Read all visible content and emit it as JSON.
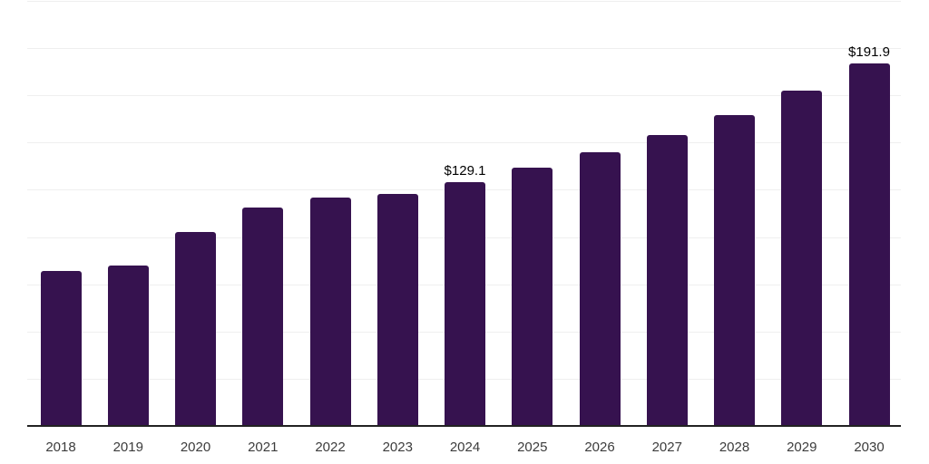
{
  "chart_data": {
    "type": "bar",
    "title": "",
    "xlabel": "",
    "ylabel": "",
    "categories": [
      "2018",
      "2019",
      "2020",
      "2021",
      "2022",
      "2023",
      "2024",
      "2025",
      "2026",
      "2027",
      "2028",
      "2029",
      "2030"
    ],
    "values": [
      82.1,
      85.0,
      102.6,
      115.4,
      121.1,
      123.0,
      129.1,
      136.5,
      145.1,
      154.0,
      164.5,
      177.6,
      191.9
    ],
    "data_labels": [
      {
        "category": "2024",
        "text": "$129.1"
      },
      {
        "category": "2030",
        "text": "$191.9"
      }
    ],
    "ylim": [
      0,
      225
    ],
    "grid_step": 25,
    "grid": "horizontal",
    "y_tick_labels_visible": false,
    "legend": "none",
    "colors": {
      "bar": "#36124F",
      "gridline": "#efefef",
      "axis_line": "#222222",
      "tick_label": "#3c3c3c",
      "data_label": "#000000",
      "background": "#ffffff"
    }
  }
}
